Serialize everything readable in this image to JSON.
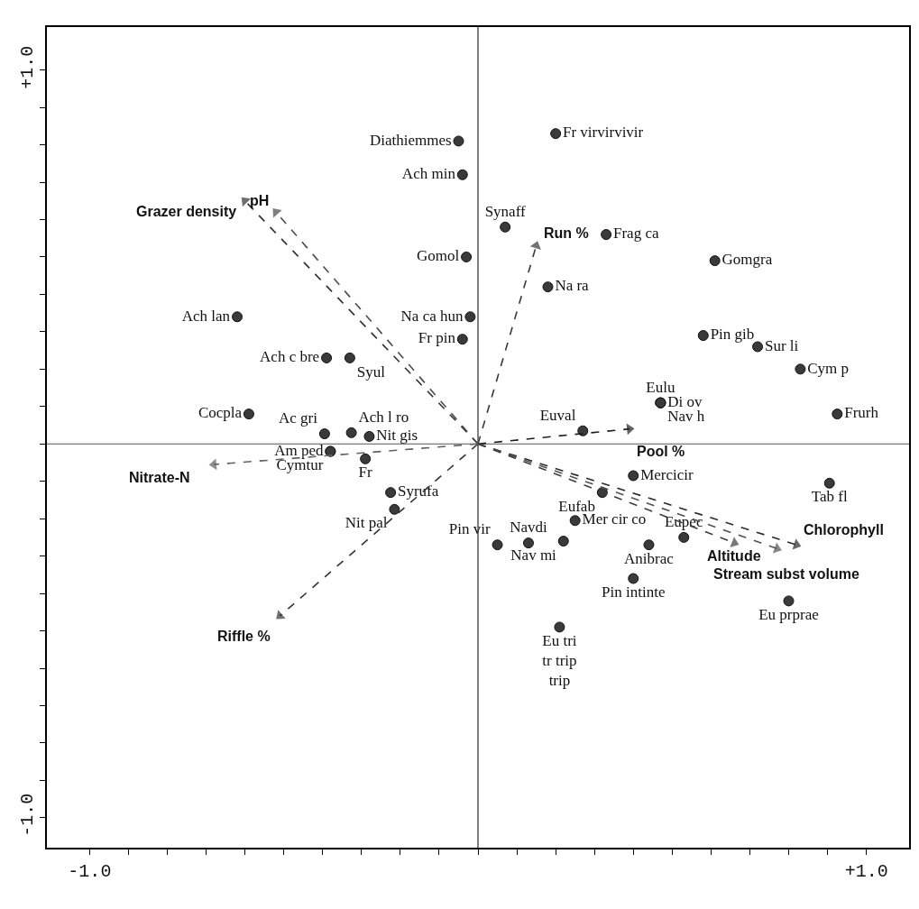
{
  "chart_data": {
    "type": "scatter",
    "ref_lines": [
      {
        "axis": "x",
        "value": 0,
        "color": "#000000"
      },
      {
        "axis": "y",
        "value": 0,
        "color": "#555555"
      }
    ],
    "xlim": [
      -1.11,
      1.11
    ],
    "ylim": [
      -1.08,
      1.115
    ],
    "xticks": [
      {
        "value": -1.0,
        "label": "-1.0"
      },
      {
        "value": -0.9,
        "label": null
      },
      {
        "value": -0.8,
        "label": null
      },
      {
        "value": -0.7,
        "label": null
      },
      {
        "value": -0.6,
        "label": null
      },
      {
        "value": -0.5,
        "label": null
      },
      {
        "value": -0.4,
        "label": null
      },
      {
        "value": -0.3,
        "label": null
      },
      {
        "value": -0.2,
        "label": null
      },
      {
        "value": -0.1,
        "label": null
      },
      {
        "value": 0,
        "label": null
      },
      {
        "value": 0.1,
        "label": null
      },
      {
        "value": 0.2,
        "label": null
      },
      {
        "value": 0.3,
        "label": null
      },
      {
        "value": 0.4,
        "label": null
      },
      {
        "value": 0.5,
        "label": null
      },
      {
        "value": 0.6,
        "label": null
      },
      {
        "value": 0.7,
        "label": null
      },
      {
        "value": 0.8,
        "label": null
      },
      {
        "value": 0.9,
        "label": null
      },
      {
        "value": 1.0,
        "label": "+1.0"
      }
    ],
    "yticks": [
      {
        "value": -1.0,
        "label": "-1.0"
      },
      {
        "value": -0.9,
        "label": null
      },
      {
        "value": -0.8,
        "label": null
      },
      {
        "value": -0.7,
        "label": null
      },
      {
        "value": -0.6,
        "label": null
      },
      {
        "value": -0.5,
        "label": null
      },
      {
        "value": -0.4,
        "label": null
      },
      {
        "value": -0.3,
        "label": null
      },
      {
        "value": -0.2,
        "label": null
      },
      {
        "value": -0.1,
        "label": null
      },
      {
        "value": 0,
        "label": null
      },
      {
        "value": 0.1,
        "label": null
      },
      {
        "value": 0.2,
        "label": null
      },
      {
        "value": 0.3,
        "label": null
      },
      {
        "value": 0.4,
        "label": null
      },
      {
        "value": 0.5,
        "label": null
      },
      {
        "value": 0.6,
        "label": null
      },
      {
        "value": 0.7,
        "label": null
      },
      {
        "value": 0.8,
        "label": null
      },
      {
        "value": 0.9,
        "label": null
      },
      {
        "value": 1.0,
        "label": "+1.0"
      }
    ],
    "series": [
      {
        "marker": "circle",
        "color": "#3a3a3a",
        "x": [
          -0.05,
          -0.04,
          0.2,
          0.07,
          0.33,
          -0.03,
          0.61,
          0.18,
          -0.02,
          -0.04,
          -0.62,
          -0.39,
          -0.33,
          0.58,
          0.72,
          0.83,
          0.47,
          0.47,
          0.47,
          -0.59,
          -0.395,
          -0.326,
          -0.28,
          -0.38,
          -0.38,
          -0.29,
          -0.225,
          -0.215,
          0.27,
          0.4,
          0.925,
          0.905,
          0.32,
          0.25,
          0.53,
          0.05,
          0.13,
          0.22,
          0.44,
          0.4,
          0.8,
          0.21
        ],
        "values": [
          0.81,
          0.72,
          0.83,
          0.58,
          0.56,
          0.5,
          0.49,
          0.42,
          0.34,
          0.28,
          0.34,
          0.23,
          0.23,
          0.29,
          0.26,
          0.2,
          0.11,
          0.11,
          0.11,
          0.08,
          0.027,
          0.03,
          0.02,
          -0.02,
          -0.02,
          -0.04,
          -0.13,
          -0.175,
          0.035,
          -0.085,
          0.08,
          -0.105,
          -0.13,
          -0.205,
          -0.25,
          -0.27,
          -0.265,
          -0.26,
          -0.27,
          -0.36,
          -0.42,
          -0.49
        ],
        "value_labels": [
          "Diathiemmes",
          "Ach min",
          "Fr virvirvivir",
          "Synaff",
          "Frag ca",
          "Gomol",
          "Gomgra",
          "Na ra",
          "Na ca hun",
          "Fr pin",
          "Ach lan",
          "Ach c bre",
          "Syul",
          "Pin gib",
          "Sur li",
          "Cym p",
          "Eulu",
          "Di ov",
          "Nav h",
          "Cocpla",
          "Ac gri",
          "Ach l ro",
          "Nit gis",
          "Am ped",
          "Cymtur",
          "Fr",
          "Syrufa",
          "Nit pal",
          "Euval",
          "Mercicir",
          "Frurh",
          "Tab fl",
          "Eufab",
          "Mer cir co",
          "Eupec",
          "Pin vir",
          "Navdi",
          "Nav mi",
          "Anibrac",
          "Pin intinte",
          "Eu prprae",
          "Eu tri\ntr trip\ntrip"
        ]
      },
      {
        "type": "line",
        "name": "Grazer density",
        "line_style": "dashed",
        "marker": "triangle",
        "color": "#303030",
        "x": [
          0,
          -0.6
        ],
        "values": [
          0,
          0.65
        ]
      },
      {
        "type": "line",
        "name": "pH",
        "line_style": "dashed",
        "marker": "triangle",
        "color": "#4a4a4a",
        "x": [
          0,
          -0.52
        ],
        "values": [
          0,
          0.62
        ]
      },
      {
        "type": "line",
        "name": "Run %",
        "line_style": "dashed",
        "marker": "triangle",
        "color": "#383838",
        "x": [
          0,
          0.15
        ],
        "values": [
          0,
          0.53
        ]
      },
      {
        "type": "line",
        "name": "Pool %",
        "line_style": "dashed",
        "marker": "triangle",
        "color": "#1e1e1e",
        "x": [
          0,
          0.39
        ],
        "values": [
          0,
          0.04
        ]
      },
      {
        "type": "line",
        "name": "Chlorophyll",
        "line_style": "dashed",
        "marker": "triangle",
        "color": "#2a2a2a",
        "x": [
          0,
          0.82
        ],
        "values": [
          0,
          -0.27
        ]
      },
      {
        "type": "line",
        "name": "Stream subst volume",
        "line_style": "dashed",
        "marker": "triangle",
        "color": "#525252",
        "x": [
          0,
          0.77
        ],
        "values": [
          0,
          -0.28
        ]
      },
      {
        "type": "line",
        "name": "Altitude",
        "line_style": "dashed",
        "marker": "triangle",
        "color": "#3e3e3e",
        "x": [
          0,
          0.66
        ],
        "values": [
          0,
          -0.265
        ]
      },
      {
        "type": "line",
        "name": "Riffle %",
        "line_style": "dashed",
        "marker": "triangle",
        "color": "#353535",
        "x": [
          0,
          -0.51
        ],
        "values": [
          0,
          -0.46
        ]
      },
      {
        "type": "line",
        "name": "Nitrate-N",
        "line_style": "dashed",
        "marker": "triangle",
        "color": "#606060",
        "x": [
          0,
          -0.68
        ],
        "values": [
          0,
          -0.055
        ]
      }
    ]
  }
}
